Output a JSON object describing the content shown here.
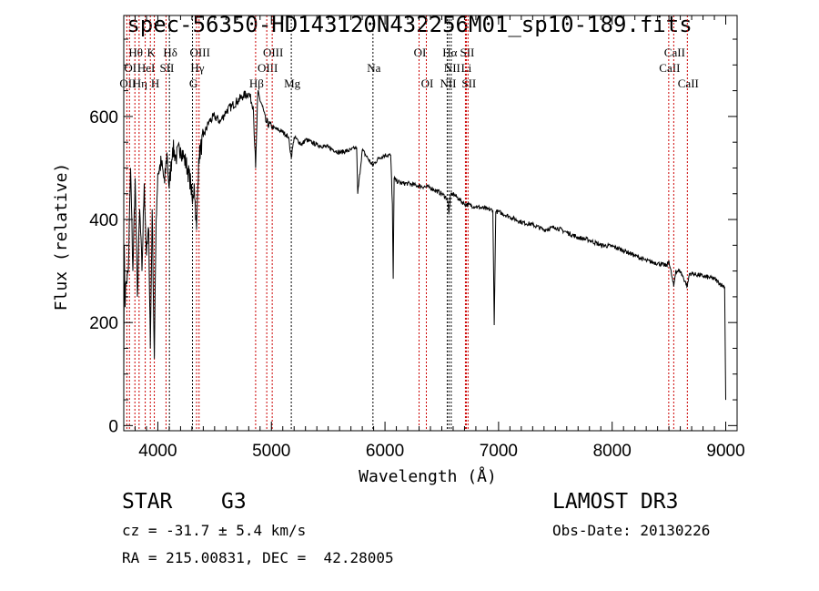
{
  "chart_data": {
    "type": "line",
    "title": "spec-56350-HD143120N432256M01_sp10-189.fits",
    "xlabel": "Wavelength (Å)",
    "ylabel": "Flux (relative)",
    "xlim": [
      3700,
      9100
    ],
    "ylim": [
      -10,
      796
    ],
    "xticks": [
      4000,
      5000,
      6000,
      7000,
      8000,
      9000
    ],
    "yticks": [
      0,
      200,
      400,
      600
    ],
    "series": [
      {
        "name": "spectrum",
        "x": [
          3700,
          3705,
          3712,
          3720,
          3740,
          3760,
          3780,
          3800,
          3820,
          3840,
          3860,
          3880,
          3900,
          3920,
          3934,
          3950,
          3969,
          3985,
          4000,
          4030,
          4060,
          4080,
          4100,
          4130,
          4160,
          4200,
          4230,
          4260,
          4290,
          4305,
          4320,
          4341,
          4360,
          4400,
          4450,
          4500,
          4550,
          4600,
          4650,
          4700,
          4750,
          4800,
          4840,
          4861,
          4880,
          4920,
          4950,
          5000,
          5050,
          5100,
          5150,
          5175,
          5200,
          5270,
          5300,
          5400,
          5500,
          5600,
          5700,
          5750,
          5760,
          5800,
          5890,
          5950,
          6000,
          6050,
          6065,
          6072,
          6080,
          6100,
          6150,
          6200,
          6300,
          6400,
          6500,
          6550,
          6563,
          6575,
          6600,
          6650,
          6700,
          6800,
          6900,
          6950,
          6962,
          6975,
          7000,
          7100,
          7200,
          7300,
          7400,
          7500,
          7600,
          7700,
          7800,
          7900,
          8000,
          8100,
          8200,
          8300,
          8400,
          8480,
          8500,
          8542,
          8560,
          8600,
          8662,
          8680,
          8700,
          8800,
          8900,
          8980,
          8990,
          9000
        ],
        "y": [
          100,
          350,
          230,
          280,
          300,
          500,
          300,
          480,
          250,
          420,
          300,
          470,
          330,
          380,
          150,
          420,
          130,
          400,
          490,
          510,
          470,
          530,
          460,
          540,
          520,
          540,
          520,
          500,
          470,
          430,
          470,
          380,
          520,
          560,
          590,
          600,
          590,
          610,
          620,
          630,
          640,
          645,
          620,
          500,
          645,
          620,
          590,
          580,
          575,
          570,
          560,
          520,
          560,
          545,
          555,
          545,
          540,
          530,
          535,
          540,
          450,
          535,
          505,
          520,
          525,
          525,
          430,
          285,
          480,
          475,
          470,
          470,
          465,
          462,
          450,
          440,
          410,
          445,
          450,
          440,
          430,
          425,
          420,
          418,
          195,
          415,
          415,
          405,
          395,
          390,
          380,
          385,
          375,
          365,
          360,
          350,
          348,
          340,
          330,
          320,
          315,
          310,
          320,
          270,
          300,
          300,
          270,
          295,
          295,
          290,
          285,
          270,
          270,
          50
        ]
      }
    ],
    "lines": [
      {
        "label": "OII",
        "wl": 3727,
        "row": 3,
        "color": "#cc0000"
      },
      {
        "label": "Hθ",
        "wl": 3798,
        "row": 1,
        "color": "#cc0000"
      },
      {
        "label": "OI",
        "wl": 3750,
        "row": 2,
        "color": "#cc0000"
      },
      {
        "label": "Hη",
        "wl": 3835,
        "row": 3,
        "color": "#cc0000"
      },
      {
        "label": "HeI",
        "wl": 3889,
        "row": 2,
        "color": "#cc0000"
      },
      {
        "label": "K",
        "wl": 3934,
        "row": 1,
        "color": "#cc0000"
      },
      {
        "label": "H",
        "wl": 3969,
        "row": 3,
        "color": "#cc0000"
      },
      {
        "label": "SII",
        "wl": 4072,
        "row": 2,
        "color": "#cc0000"
      },
      {
        "label": "Hδ",
        "wl": 4102,
        "row": 1,
        "color": "#000000"
      },
      {
        "label": "G",
        "wl": 4305,
        "row": 3,
        "color": "#000000"
      },
      {
        "label": "Hγ",
        "wl": 4341,
        "row": 2,
        "color": "#cc0000"
      },
      {
        "label": "OIII",
        "wl": 4363,
        "row": 1,
        "color": "#cc0000"
      },
      {
        "label": "Hβ",
        "wl": 4861,
        "row": 3,
        "color": "#cc0000"
      },
      {
        "label": "OIII",
        "wl": 4959,
        "row": 2,
        "color": "#cc0000"
      },
      {
        "label": "OIII",
        "wl": 5007,
        "row": 1,
        "color": "#cc0000"
      },
      {
        "label": "Mg",
        "wl": 5175,
        "row": 3,
        "color": "#000000"
      },
      {
        "label": "Na",
        "wl": 5894,
        "row": 2,
        "color": "#000000"
      },
      {
        "label": "OI",
        "wl": 6300,
        "row": 1,
        "color": "#cc0000"
      },
      {
        "label": "OI",
        "wl": 6364,
        "row": 3,
        "color": "#cc0000"
      },
      {
        "label": "NII",
        "wl": 6548,
        "row": 3,
        "color": "#000000"
      },
      {
        "label": "Hα",
        "wl": 6563,
        "row": 1,
        "color": "#000000"
      },
      {
        "label": "NII",
        "wl": 6583,
        "row": 2,
        "color": "#000000"
      },
      {
        "label": "Li",
        "wl": 6708,
        "row": 2,
        "color": "#cc0000"
      },
      {
        "label": "SII",
        "wl": 6716,
        "row": 1,
        "color": "#cc0000"
      },
      {
        "label": "SII",
        "wl": 6731,
        "row": 3,
        "color": "#cc0000"
      },
      {
        "label": "CaII",
        "wl": 8498,
        "row": 2,
        "color": "#cc0000"
      },
      {
        "label": "CaII",
        "wl": 8542,
        "row": 1,
        "color": "#cc0000"
      },
      {
        "label": "CaII",
        "wl": 8662,
        "row": 3,
        "color": "#cc0000"
      }
    ]
  },
  "info": {
    "object_class": "STAR",
    "subclass": "G3",
    "redshift": "cz = -31.7 ± 5.4 km/s",
    "coords": "RA = 215.00831, DEC =  42.28005",
    "survey": "LAMOST DR3",
    "obs_date": "Obs-Date: 20130226"
  }
}
